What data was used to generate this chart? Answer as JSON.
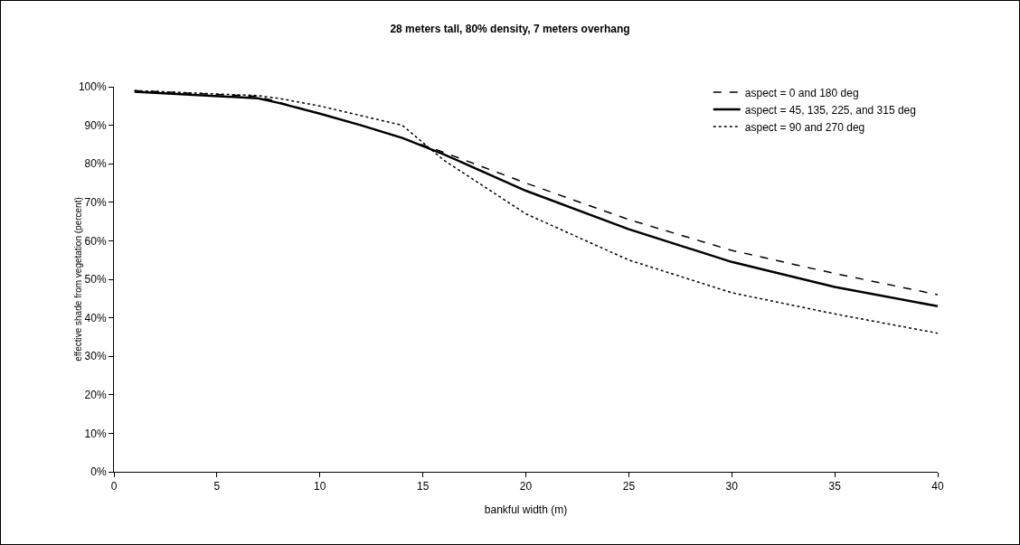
{
  "chart_data": {
    "type": "line",
    "title": "28 meters tall, 80% density, 7 meters overhang",
    "xlabel": "bankful width (m)",
    "ylabel": "effective shade from vegetation (percent)",
    "x": [
      1,
      7,
      8,
      10,
      12,
      14,
      16,
      20,
      25,
      30,
      35,
      40
    ],
    "series": [
      {
        "name": "aspect = 0 and 180 deg",
        "color": "#000000",
        "line_style": "dashed",
        "values": [
          99,
          97.5,
          96,
          93,
          90,
          86.7,
          83,
          75,
          65.5,
          57.5,
          51.5,
          46
        ]
      },
      {
        "name": "aspect = 45, 135, 225, and 315 deg",
        "color": "#000000",
        "line_style": "solid",
        "values": [
          98.7,
          97,
          95.8,
          93,
          90,
          86.7,
          82.5,
          73,
          63,
          54.5,
          48,
          43
        ]
      },
      {
        "name": "aspect = 90 and 270 deg",
        "color": "#000000",
        "line_style": "dotted",
        "x": [
          1,
          7,
          8,
          10,
          12,
          14,
          16,
          18,
          20,
          25,
          30,
          35,
          40
        ],
        "values": [
          99,
          97.7,
          97,
          95,
          92.5,
          90,
          81,
          74,
          67,
          55,
          46.5,
          41,
          36
        ]
      }
    ],
    "xlim": [
      0,
      40
    ],
    "xticks": [
      0,
      5,
      10,
      15,
      20,
      25,
      30,
      35,
      40
    ],
    "ylim": [
      0,
      100
    ],
    "yticks": [
      {
        "value": 0,
        "label": "0%"
      },
      {
        "value": 10,
        "label": "10%"
      },
      {
        "value": 20,
        "label": "20%"
      },
      {
        "value": 30,
        "label": "30%"
      },
      {
        "value": 40,
        "label": "40%"
      },
      {
        "value": 50,
        "label": "50%"
      },
      {
        "value": 60,
        "label": "60%"
      },
      {
        "value": 70,
        "label": "70%"
      },
      {
        "value": 80,
        "label": "80%"
      },
      {
        "value": 90,
        "label": "90%"
      },
      {
        "value": 100,
        "label": "100%"
      }
    ],
    "grid": false,
    "legend": "top right",
    "marker": "none"
  }
}
